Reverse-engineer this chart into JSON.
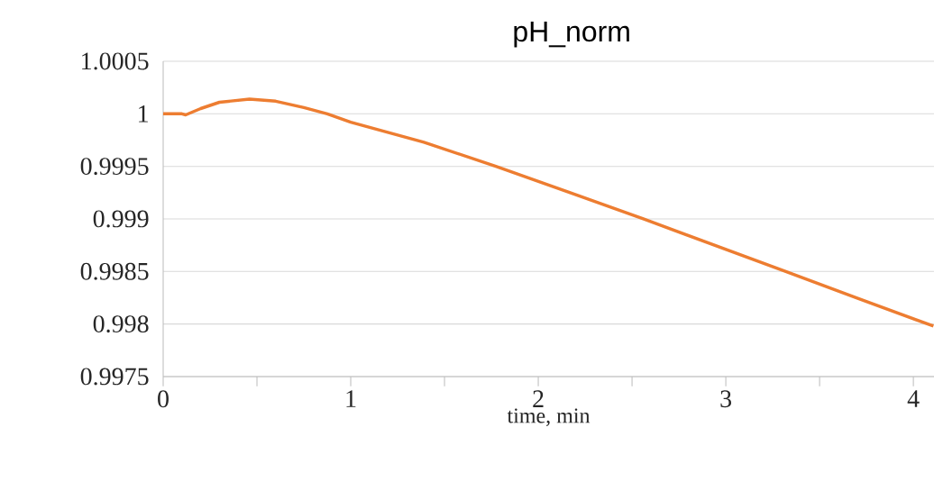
{
  "chart_data": {
    "type": "line",
    "title": "pH_norm",
    "xlabel": "time, min",
    "x": [
      0,
      0.1,
      0.12,
      0.2,
      0.3,
      0.46,
      0.6,
      0.75,
      0.875,
      1.0,
      1.39,
      1.774,
      2.17,
      2.56,
      2.94,
      3.32,
      3.71,
      4.107
    ],
    "series": [
      {
        "color": "#ed7d31",
        "values": [
          1,
          1,
          0.99999,
          1.00005,
          1.00011,
          1.00014,
          1.00012,
          1.00006,
          1.0,
          0.99992,
          0.99973,
          0.9995,
          0.99925,
          0.999,
          0.99875,
          0.9985,
          0.99824,
          0.99798
        ]
      }
    ],
    "xlim": [
      0,
      4.11
    ],
    "ylim": [
      0.9975,
      1.0005
    ],
    "xticks": [
      0,
      {
        "value": 0.5,
        "label": null
      },
      1,
      {
        "value": 1.5,
        "label": null
      },
      2,
      {
        "value": 2.5,
        "label": null
      },
      3,
      {
        "value": 3.5,
        "label": null
      },
      4
    ],
    "yticks": [
      0.9975,
      0.998,
      0.9985,
      0.999,
      0.9995,
      1,
      1.0005
    ],
    "grid": "y"
  }
}
